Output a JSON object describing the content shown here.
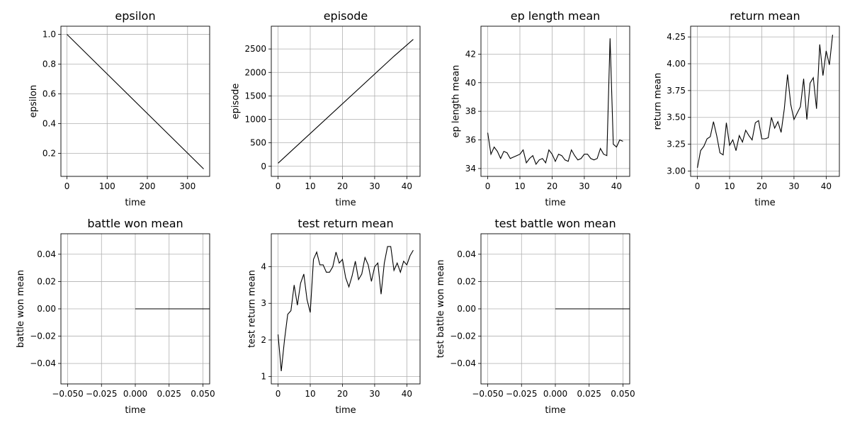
{
  "chart_data": [
    {
      "type": "line",
      "title": "epsilon",
      "xlabel": "time",
      "ylabel": "epsilon",
      "xlim": [
        -15,
        355
      ],
      "ylim": [
        0.045,
        1.055
      ],
      "xticks": [
        0,
        100,
        200,
        300
      ],
      "xtick_labels": [
        "0",
        "100",
        "200",
        "300"
      ],
      "yticks": [
        0.2,
        0.4,
        0.6,
        0.8,
        1.0
      ],
      "ytick_labels": [
        "0.2",
        "0.4",
        "0.6",
        "0.8",
        "1.0"
      ],
      "grid": true,
      "series": [
        {
          "x": [
            0,
            340
          ],
          "y": [
            1.0,
            0.095
          ]
        }
      ]
    },
    {
      "type": "line",
      "title": "episode",
      "xlabel": "time",
      "ylabel": "episode",
      "xlim": [
        -2.1,
        44.1
      ],
      "ylim": [
        -215,
        2985
      ],
      "xticks": [
        0,
        10,
        20,
        30,
        40
      ],
      "xtick_labels": [
        "0",
        "10",
        "20",
        "30",
        "40"
      ],
      "yticks": [
        0,
        500,
        1000,
        1500,
        2000,
        2500
      ],
      "ytick_labels": [
        "0",
        "500",
        "1000",
        "1500",
        "2000",
        "2500"
      ],
      "grid": true,
      "series": [
        {
          "x": [
            0,
            36,
            42
          ],
          "y": [
            65,
            2345,
            2705
          ]
        }
      ]
    },
    {
      "type": "line",
      "title": "ep length mean",
      "xlabel": "time",
      "ylabel": "ep length mean",
      "xlim": [
        -2.1,
        44.1
      ],
      "ylim": [
        33.45,
        43.95
      ],
      "xticks": [
        0,
        10,
        20,
        30,
        40
      ],
      "xtick_labels": [
        "0",
        "10",
        "20",
        "30",
        "40"
      ],
      "yticks": [
        34,
        36,
        38,
        40,
        42
      ],
      "ytick_labels": [
        "34",
        "36",
        "38",
        "40",
        "42"
      ],
      "grid": true,
      "series": [
        {
          "x": [
            0,
            1,
            2,
            3,
            4,
            5,
            6,
            7,
            8,
            9,
            10,
            11,
            12,
            13,
            14,
            15,
            16,
            17,
            18,
            19,
            20,
            21,
            22,
            23,
            24,
            25,
            26,
            27,
            28,
            29,
            30,
            31,
            32,
            33,
            34,
            35,
            36,
            37,
            38,
            39,
            40,
            41,
            42
          ],
          "y": [
            36.5,
            35.0,
            35.5,
            35.2,
            34.7,
            35.2,
            35.1,
            34.7,
            34.8,
            34.9,
            35.0,
            35.3,
            34.4,
            34.7,
            34.9,
            34.3,
            34.6,
            34.7,
            34.4,
            35.3,
            35.0,
            34.5,
            35.0,
            34.9,
            34.6,
            34.5,
            35.3,
            34.9,
            34.6,
            34.7,
            35.0,
            35.0,
            34.7,
            34.6,
            34.7,
            35.4,
            35.0,
            34.9,
            43.1,
            35.7,
            35.5,
            36.0,
            35.9
          ]
        }
      ]
    },
    {
      "type": "line",
      "title": "return mean",
      "xlabel": "time",
      "ylabel": "return mean",
      "xlim": [
        -2.1,
        44.1
      ],
      "ylim": [
        2.95,
        4.35
      ],
      "xticks": [
        0,
        10,
        20,
        30,
        40
      ],
      "xtick_labels": [
        "0",
        "10",
        "20",
        "30",
        "40"
      ],
      "yticks": [
        3.0,
        3.25,
        3.5,
        3.75,
        4.0,
        4.25
      ],
      "ytick_labels": [
        "3.00",
        "3.25",
        "3.50",
        "3.75",
        "4.00",
        "4.25"
      ],
      "grid": true,
      "series": [
        {
          "x": [
            0,
            1,
            2,
            3,
            4,
            5,
            6,
            7,
            8,
            9,
            10,
            11,
            12,
            13,
            14,
            15,
            16,
            17,
            18,
            19,
            20,
            21,
            22,
            23,
            24,
            25,
            26,
            27,
            28,
            29,
            30,
            31,
            32,
            33,
            34,
            35,
            36,
            37,
            38,
            39,
            40,
            41,
            42
          ],
          "y": [
            3.03,
            3.19,
            3.23,
            3.3,
            3.32,
            3.46,
            3.33,
            3.17,
            3.15,
            3.45,
            3.24,
            3.29,
            3.19,
            3.33,
            3.27,
            3.38,
            3.33,
            3.29,
            3.45,
            3.47,
            3.3,
            3.3,
            3.31,
            3.5,
            3.4,
            3.46,
            3.36,
            3.58,
            3.9,
            3.62,
            3.48,
            3.54,
            3.6,
            3.86,
            3.48,
            3.82,
            3.87,
            3.58,
            4.18,
            3.89,
            4.12,
            3.99,
            4.27
          ]
        }
      ]
    },
    {
      "type": "line",
      "title": "battle won mean",
      "xlabel": "time",
      "ylabel": "battle won mean",
      "xlim": [
        -0.055,
        0.055
      ],
      "ylim": [
        -0.055,
        0.055
      ],
      "xticks": [
        -0.05,
        -0.025,
        0.0,
        0.025,
        0.05
      ],
      "xtick_labels": [
        "−0.050",
        "−0.025",
        "0.000",
        "0.025",
        "0.050"
      ],
      "yticks": [
        -0.04,
        -0.02,
        0.0,
        0.02,
        0.04
      ],
      "ytick_labels": [
        "−0.04",
        "−0.02",
        "0.00",
        "0.02",
        "0.04"
      ],
      "grid": true,
      "series": [
        {
          "x": [
            0.0,
            0.055
          ],
          "y": [
            0.0,
            0.0
          ]
        }
      ]
    },
    {
      "type": "line",
      "title": "test return mean",
      "xlabel": "time",
      "ylabel": "test return mean",
      "xlim": [
        -2.1,
        44.1
      ],
      "ylim": [
        0.8,
        4.9
      ],
      "xticks": [
        0,
        10,
        20,
        30,
        40
      ],
      "xtick_labels": [
        "0",
        "10",
        "20",
        "30",
        "40"
      ],
      "yticks": [
        1,
        2,
        3,
        4
      ],
      "ytick_labels": [
        "1",
        "2",
        "3",
        "4"
      ],
      "grid": true,
      "series": [
        {
          "x": [
            0,
            1,
            2,
            3,
            4,
            5,
            6,
            7,
            8,
            9,
            10,
            11,
            12,
            13,
            14,
            15,
            16,
            17,
            18,
            19,
            20,
            21,
            22,
            23,
            24,
            25,
            26,
            27,
            28,
            29,
            30,
            31,
            32,
            33,
            34,
            35,
            36,
            37,
            38,
            39,
            40,
            41,
            42
          ],
          "y": [
            2.15,
            1.15,
            2.0,
            2.7,
            2.8,
            3.5,
            2.95,
            3.55,
            3.8,
            3.1,
            2.75,
            4.2,
            4.4,
            4.05,
            4.05,
            3.85,
            3.85,
            4.0,
            4.4,
            4.1,
            4.2,
            3.7,
            3.45,
            3.75,
            4.15,
            3.65,
            3.8,
            4.25,
            4.05,
            3.6,
            4.0,
            4.1,
            3.25,
            4.1,
            4.55,
            4.55,
            3.9,
            4.1,
            3.85,
            4.15,
            4.05,
            4.3,
            4.45
          ]
        }
      ]
    },
    {
      "type": "line",
      "title": "test battle won mean",
      "xlabel": "time",
      "ylabel": "test battle won mean",
      "xlim": [
        -0.055,
        0.055
      ],
      "ylim": [
        -0.055,
        0.055
      ],
      "xticks": [
        -0.05,
        -0.025,
        0.0,
        0.025,
        0.05
      ],
      "xtick_labels": [
        "−0.050",
        "−0.025",
        "0.000",
        "0.025",
        "0.050"
      ],
      "yticks": [
        -0.04,
        -0.02,
        0.0,
        0.02,
        0.04
      ],
      "ytick_labels": [
        "−0.04",
        "−0.02",
        "0.00",
        "0.02",
        "0.04"
      ],
      "grid": true,
      "series": [
        {
          "x": [
            0.0,
            0.055
          ],
          "y": [
            0.0,
            0.0
          ]
        }
      ]
    }
  ]
}
